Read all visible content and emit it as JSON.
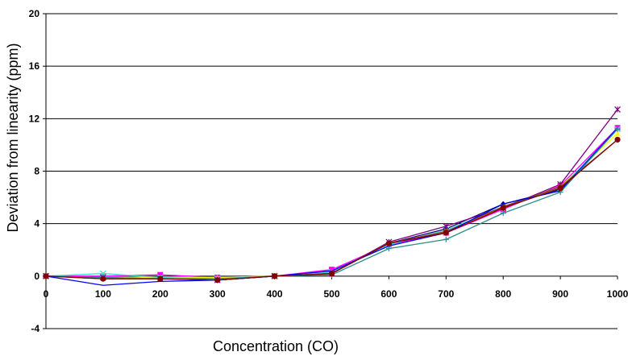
{
  "chart_data": {
    "type": "line",
    "title": "",
    "xlabel": "Concentration (CO)",
    "ylabel": "Deviation from linearity (ppm)",
    "xlim": [
      0,
      1000
    ],
    "ylim": [
      -4,
      20
    ],
    "x_ticks": [
      0,
      100,
      200,
      300,
      400,
      500,
      600,
      700,
      800,
      900,
      1000
    ],
    "y_ticks": [
      -4,
      0,
      4,
      8,
      12,
      16,
      20
    ],
    "grid": "horizontal",
    "legend": "none",
    "x": [
      0,
      100,
      200,
      300,
      400,
      500,
      600,
      700,
      800,
      900,
      1000
    ],
    "series": [
      {
        "color": "#000080",
        "marker": "diamond",
        "values": [
          0,
          -0.1,
          -0.1,
          -0.2,
          0,
          0.3,
          2.5,
          3.6,
          5.5,
          6.6,
          11.3
        ]
      },
      {
        "color": "#ff00ff",
        "marker": "square",
        "values": [
          0,
          0,
          0.1,
          -0.1,
          0,
          0.5,
          2.4,
          3.3,
          5.1,
          6.9,
          11.3
        ]
      },
      {
        "color": "#ffff00",
        "marker": "triangle",
        "values": [
          0,
          -0.1,
          -0.1,
          -0.1,
          0,
          0.3,
          2.5,
          3.4,
          5.2,
          6.8,
          10.9
        ]
      },
      {
        "color": "#40e0d0",
        "marker": "x",
        "values": [
          0,
          0.2,
          -0.1,
          -0.2,
          0,
          0.3,
          2.4,
          3.5,
          5.3,
          6.7,
          11.2
        ]
      },
      {
        "color": "#800080",
        "marker": "star",
        "values": [
          0,
          -0.1,
          -0.2,
          -0.3,
          0,
          0.2,
          2.6,
          3.8,
          5.2,
          7.0,
          12.7
        ]
      },
      {
        "color": "#8b4513",
        "marker": "circle",
        "values": [
          0,
          -0.2,
          -0.2,
          -0.3,
          0,
          0.2,
          2.5,
          3.4,
          5.3,
          6.8,
          10.4
        ]
      },
      {
        "color": "#0000ff",
        "marker": "none",
        "values": [
          0,
          -0.7,
          -0.4,
          -0.3,
          0,
          0.4,
          2.3,
          3.3,
          5.5,
          6.5,
          11.3
        ]
      },
      {
        "color": "#2e8b8b",
        "marker": "plus",
        "values": [
          0,
          -0.1,
          -0.2,
          -0.2,
          0,
          0.1,
          2.1,
          2.8,
          4.8,
          6.4,
          11.2
        ]
      },
      {
        "color": "#800000",
        "marker": "circle",
        "values": [
          0,
          -0.2,
          -0.2,
          -0.3,
          0,
          0.2,
          2.5,
          3.3,
          5.2,
          6.7,
          10.4
        ]
      }
    ]
  }
}
